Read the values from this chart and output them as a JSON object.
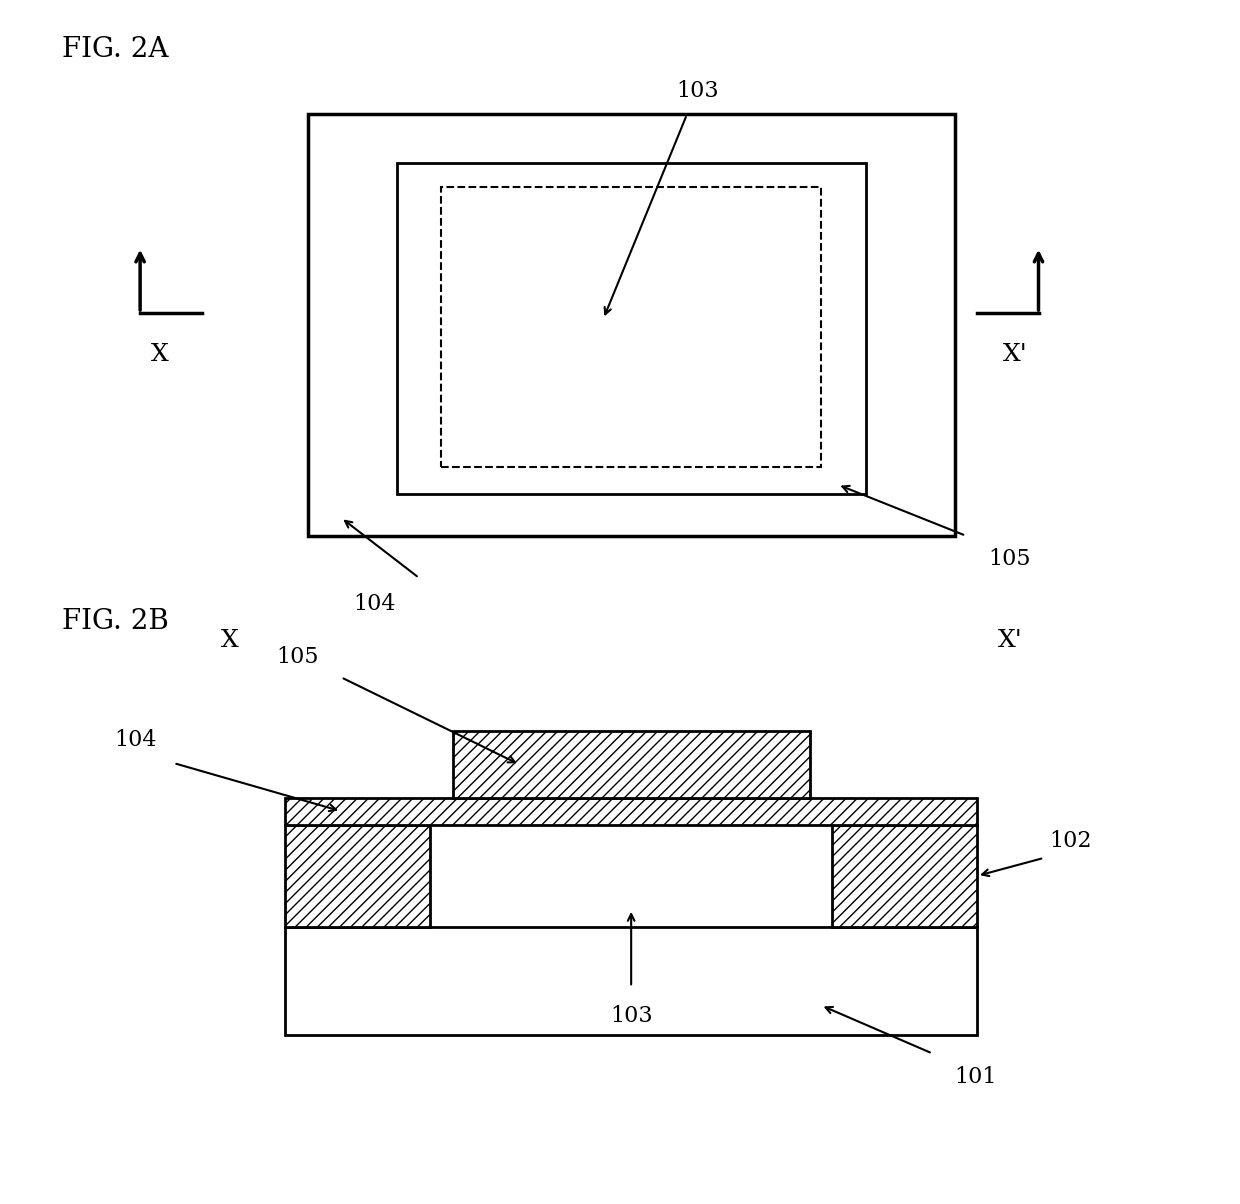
{
  "fig_label_2A": "FIG. 2A",
  "fig_label_2B": "FIG. 2B",
  "bg_color": "#ffffff",
  "line_color": "#000000",
  "label_103_2A": "103",
  "label_104_2A": "104",
  "label_105_2A": "105",
  "label_X_left_2A": "X",
  "label_X_right_2A": "X'",
  "label_X_left_2B": "X",
  "label_X_right_2B": "X'",
  "label_101": "101",
  "label_102": "102",
  "label_103_2B": "103",
  "label_104_2B": "104",
  "label_105_2B": "105",
  "font_size_label": 18,
  "font_size_fig": 20,
  "font_size_number": 16
}
